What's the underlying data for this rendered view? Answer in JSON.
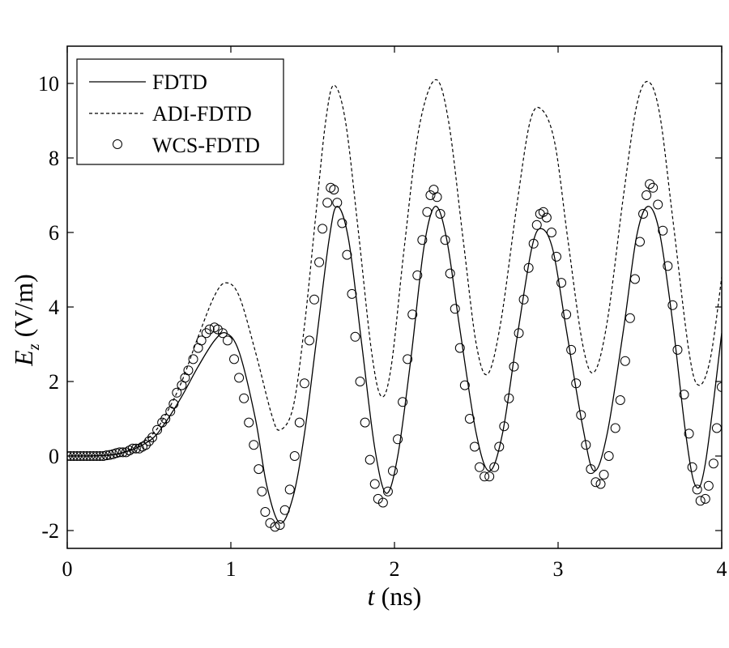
{
  "chart_data": {
    "type": "line",
    "title": "",
    "xlabel_var": "t",
    "xlabel_unit": " (ns)",
    "ylabel_var": "E",
    "ylabel_sub": "z",
    "ylabel_unit": " (V/m)",
    "xlim": [
      0,
      4
    ],
    "ylim": [
      -2.5,
      11
    ],
    "xticks": [
      "0",
      "1",
      "2",
      "3",
      "4"
    ],
    "yticks": [
      "-2",
      "0",
      "2",
      "4",
      "6",
      "8",
      "10"
    ],
    "grid": false,
    "legend_position": "upper left",
    "legend": [
      "FDTD",
      "ADI-FDTD",
      "WCS-FDTD"
    ],
    "series": [
      {
        "name": "FDTD",
        "style": "solid",
        "points": [
          [
            0,
            0
          ],
          [
            0.3,
            0.05
          ],
          [
            0.5,
            0.4
          ],
          [
            0.6,
            0.9
          ],
          [
            0.7,
            1.6
          ],
          [
            0.8,
            2.4
          ],
          [
            0.9,
            3.1
          ],
          [
            0.97,
            3.3
          ],
          [
            1.05,
            2.8
          ],
          [
            1.15,
            1.0
          ],
          [
            1.22,
            -0.8
          ],
          [
            1.3,
            -1.8
          ],
          [
            1.38,
            -1.1
          ],
          [
            1.45,
            0.6
          ],
          [
            1.52,
            3.0
          ],
          [
            1.6,
            5.8
          ],
          [
            1.65,
            6.7
          ],
          [
            1.72,
            5.8
          ],
          [
            1.8,
            3.0
          ],
          [
            1.88,
            0.2
          ],
          [
            1.95,
            -1.0
          ],
          [
            2.02,
            0.0
          ],
          [
            2.1,
            2.6
          ],
          [
            2.18,
            5.6
          ],
          [
            2.25,
            6.7
          ],
          [
            2.32,
            5.8
          ],
          [
            2.4,
            3.4
          ],
          [
            2.5,
            0.6
          ],
          [
            2.58,
            -0.4
          ],
          [
            2.66,
            0.6
          ],
          [
            2.75,
            3.2
          ],
          [
            2.84,
            5.6
          ],
          [
            2.9,
            6.1
          ],
          [
            2.97,
            5.5
          ],
          [
            3.05,
            3.4
          ],
          [
            3.15,
            0.8
          ],
          [
            3.22,
            -0.4
          ],
          [
            3.3,
            0.6
          ],
          [
            3.4,
            3.4
          ],
          [
            3.48,
            5.9
          ],
          [
            3.55,
            6.7
          ],
          [
            3.62,
            6.0
          ],
          [
            3.7,
            3.6
          ],
          [
            3.78,
            0.6
          ],
          [
            3.84,
            -0.8
          ],
          [
            3.9,
            -0.2
          ],
          [
            4.0,
            3.3
          ]
        ]
      },
      {
        "name": "ADI-FDTD",
        "style": "dashed",
        "points": [
          [
            0,
            0
          ],
          [
            0.3,
            0.05
          ],
          [
            0.5,
            0.5
          ],
          [
            0.6,
            1.1
          ],
          [
            0.7,
            2.0
          ],
          [
            0.8,
            3.2
          ],
          [
            0.9,
            4.3
          ],
          [
            0.97,
            4.65
          ],
          [
            1.05,
            4.3
          ],
          [
            1.15,
            2.8
          ],
          [
            1.25,
            1.1
          ],
          [
            1.3,
            0.7
          ],
          [
            1.38,
            1.3
          ],
          [
            1.45,
            3.5
          ],
          [
            1.52,
            6.5
          ],
          [
            1.58,
            9.0
          ],
          [
            1.63,
            9.95
          ],
          [
            1.7,
            9.0
          ],
          [
            1.78,
            6.0
          ],
          [
            1.86,
            2.8
          ],
          [
            1.92,
            1.6
          ],
          [
            1.98,
            2.4
          ],
          [
            2.06,
            5.6
          ],
          [
            2.15,
            8.8
          ],
          [
            2.25,
            10.1
          ],
          [
            2.33,
            9.0
          ],
          [
            2.42,
            5.8
          ],
          [
            2.5,
            3.0
          ],
          [
            2.57,
            2.2
          ],
          [
            2.65,
            3.6
          ],
          [
            2.75,
            6.8
          ],
          [
            2.83,
            9.0
          ],
          [
            2.9,
            9.3
          ],
          [
            2.98,
            8.4
          ],
          [
            3.06,
            5.8
          ],
          [
            3.15,
            3.0
          ],
          [
            3.22,
            2.25
          ],
          [
            3.3,
            3.6
          ],
          [
            3.4,
            7.0
          ],
          [
            3.48,
            9.4
          ],
          [
            3.55,
            10.05
          ],
          [
            3.62,
            9.2
          ],
          [
            3.7,
            6.4
          ],
          [
            3.8,
            2.8
          ],
          [
            3.86,
            1.9
          ],
          [
            3.93,
            2.6
          ],
          [
            4.0,
            4.8
          ]
        ]
      },
      {
        "name": "WCS-FDTD",
        "style": "markers-circle",
        "points": [
          [
            0,
            0
          ],
          [
            0.02,
            0
          ],
          [
            0.04,
            0
          ],
          [
            0.06,
            0
          ],
          [
            0.08,
            0
          ],
          [
            0.1,
            0
          ],
          [
            0.12,
            0
          ],
          [
            0.14,
            0
          ],
          [
            0.16,
            0
          ],
          [
            0.18,
            0
          ],
          [
            0.2,
            0
          ],
          [
            0.22,
            0
          ],
          [
            0.24,
            0.02
          ],
          [
            0.26,
            0.03
          ],
          [
            0.28,
            0.05
          ],
          [
            0.3,
            0.08
          ],
          [
            0.32,
            0.1
          ],
          [
            0.34,
            0.1
          ],
          [
            0.36,
            0.1
          ],
          [
            0.38,
            0.15
          ],
          [
            0.4,
            0.2
          ],
          [
            0.42,
            0.2
          ],
          [
            0.44,
            0.2
          ],
          [
            0.46,
            0.25
          ],
          [
            0.48,
            0.3
          ],
          [
            0.5,
            0.4
          ],
          [
            0.52,
            0.5
          ],
          [
            0.55,
            0.7
          ],
          [
            0.58,
            0.9
          ],
          [
            0.6,
            1.0
          ],
          [
            0.63,
            1.2
          ],
          [
            0.65,
            1.4
          ],
          [
            0.67,
            1.7
          ],
          [
            0.7,
            1.9
          ],
          [
            0.72,
            2.1
          ],
          [
            0.74,
            2.3
          ],
          [
            0.77,
            2.6
          ],
          [
            0.8,
            2.9
          ],
          [
            0.82,
            3.1
          ],
          [
            0.85,
            3.3
          ],
          [
            0.87,
            3.4
          ],
          [
            0.9,
            3.45
          ],
          [
            0.92,
            3.4
          ],
          [
            0.95,
            3.3
          ],
          [
            0.98,
            3.1
          ],
          [
            1.02,
            2.6
          ],
          [
            1.05,
            2.1
          ],
          [
            1.08,
            1.55
          ],
          [
            1.11,
            0.9
          ],
          [
            1.14,
            0.3
          ],
          [
            1.17,
            -0.35
          ],
          [
            1.19,
            -0.95
          ],
          [
            1.21,
            -1.5
          ],
          [
            1.24,
            -1.8
          ],
          [
            1.27,
            -1.9
          ],
          [
            1.3,
            -1.85
          ],
          [
            1.33,
            -1.45
          ],
          [
            1.36,
            -0.9
          ],
          [
            1.39,
            0.0
          ],
          [
            1.42,
            0.9
          ],
          [
            1.45,
            1.95
          ],
          [
            1.48,
            3.1
          ],
          [
            1.51,
            4.2
          ],
          [
            1.54,
            5.2
          ],
          [
            1.56,
            6.1
          ],
          [
            1.59,
            6.8
          ],
          [
            1.61,
            7.2
          ],
          [
            1.63,
            7.15
          ],
          [
            1.65,
            6.8
          ],
          [
            1.68,
            6.25
          ],
          [
            1.71,
            5.4
          ],
          [
            1.74,
            4.35
          ],
          [
            1.76,
            3.2
          ],
          [
            1.79,
            2.0
          ],
          [
            1.82,
            0.9
          ],
          [
            1.85,
            -0.1
          ],
          [
            1.88,
            -0.75
          ],
          [
            1.9,
            -1.15
          ],
          [
            1.93,
            -1.25
          ],
          [
            1.96,
            -0.95
          ],
          [
            1.99,
            -0.4
          ],
          [
            2.02,
            0.45
          ],
          [
            2.05,
            1.45
          ],
          [
            2.08,
            2.6
          ],
          [
            2.11,
            3.8
          ],
          [
            2.14,
            4.85
          ],
          [
            2.17,
            5.8
          ],
          [
            2.2,
            6.55
          ],
          [
            2.22,
            7.0
          ],
          [
            2.24,
            7.15
          ],
          [
            2.26,
            6.95
          ],
          [
            2.28,
            6.5
          ],
          [
            2.31,
            5.8
          ],
          [
            2.34,
            4.9
          ],
          [
            2.37,
            3.95
          ],
          [
            2.4,
            2.9
          ],
          [
            2.43,
            1.9
          ],
          [
            2.46,
            1.0
          ],
          [
            2.49,
            0.25
          ],
          [
            2.52,
            -0.3
          ],
          [
            2.55,
            -0.55
          ],
          [
            2.58,
            -0.55
          ],
          [
            2.61,
            -0.3
          ],
          [
            2.64,
            0.25
          ],
          [
            2.67,
            0.8
          ],
          [
            2.7,
            1.55
          ],
          [
            2.73,
            2.4
          ],
          [
            2.76,
            3.3
          ],
          [
            2.79,
            4.2
          ],
          [
            2.82,
            5.05
          ],
          [
            2.85,
            5.7
          ],
          [
            2.87,
            6.2
          ],
          [
            2.89,
            6.5
          ],
          [
            2.91,
            6.55
          ],
          [
            2.93,
            6.4
          ],
          [
            2.96,
            6.0
          ],
          [
            2.99,
            5.35
          ],
          [
            3.02,
            4.65
          ],
          [
            3.05,
            3.8
          ],
          [
            3.08,
            2.85
          ],
          [
            3.11,
            1.95
          ],
          [
            3.14,
            1.1
          ],
          [
            3.17,
            0.3
          ],
          [
            3.2,
            -0.35
          ],
          [
            3.23,
            -0.7
          ],
          [
            3.26,
            -0.75
          ],
          [
            3.28,
            -0.5
          ],
          [
            3.31,
            0.0
          ],
          [
            3.35,
            0.75
          ],
          [
            3.38,
            1.5
          ],
          [
            3.41,
            2.55
          ],
          [
            3.44,
            3.7
          ],
          [
            3.47,
            4.75
          ],
          [
            3.5,
            5.75
          ],
          [
            3.52,
            6.5
          ],
          [
            3.54,
            7.0
          ],
          [
            3.56,
            7.3
          ],
          [
            3.58,
            7.2
          ],
          [
            3.61,
            6.75
          ],
          [
            3.64,
            6.05
          ],
          [
            3.67,
            5.1
          ],
          [
            3.7,
            4.05
          ],
          [
            3.73,
            2.85
          ],
          [
            3.77,
            1.65
          ],
          [
            3.8,
            0.6
          ],
          [
            3.82,
            -0.3
          ],
          [
            3.85,
            -0.9
          ],
          [
            3.87,
            -1.2
          ],
          [
            3.9,
            -1.15
          ],
          [
            3.92,
            -0.8
          ],
          [
            3.95,
            -0.2
          ],
          [
            3.97,
            0.75
          ],
          [
            4.0,
            1.85
          ]
        ]
      }
    ]
  }
}
